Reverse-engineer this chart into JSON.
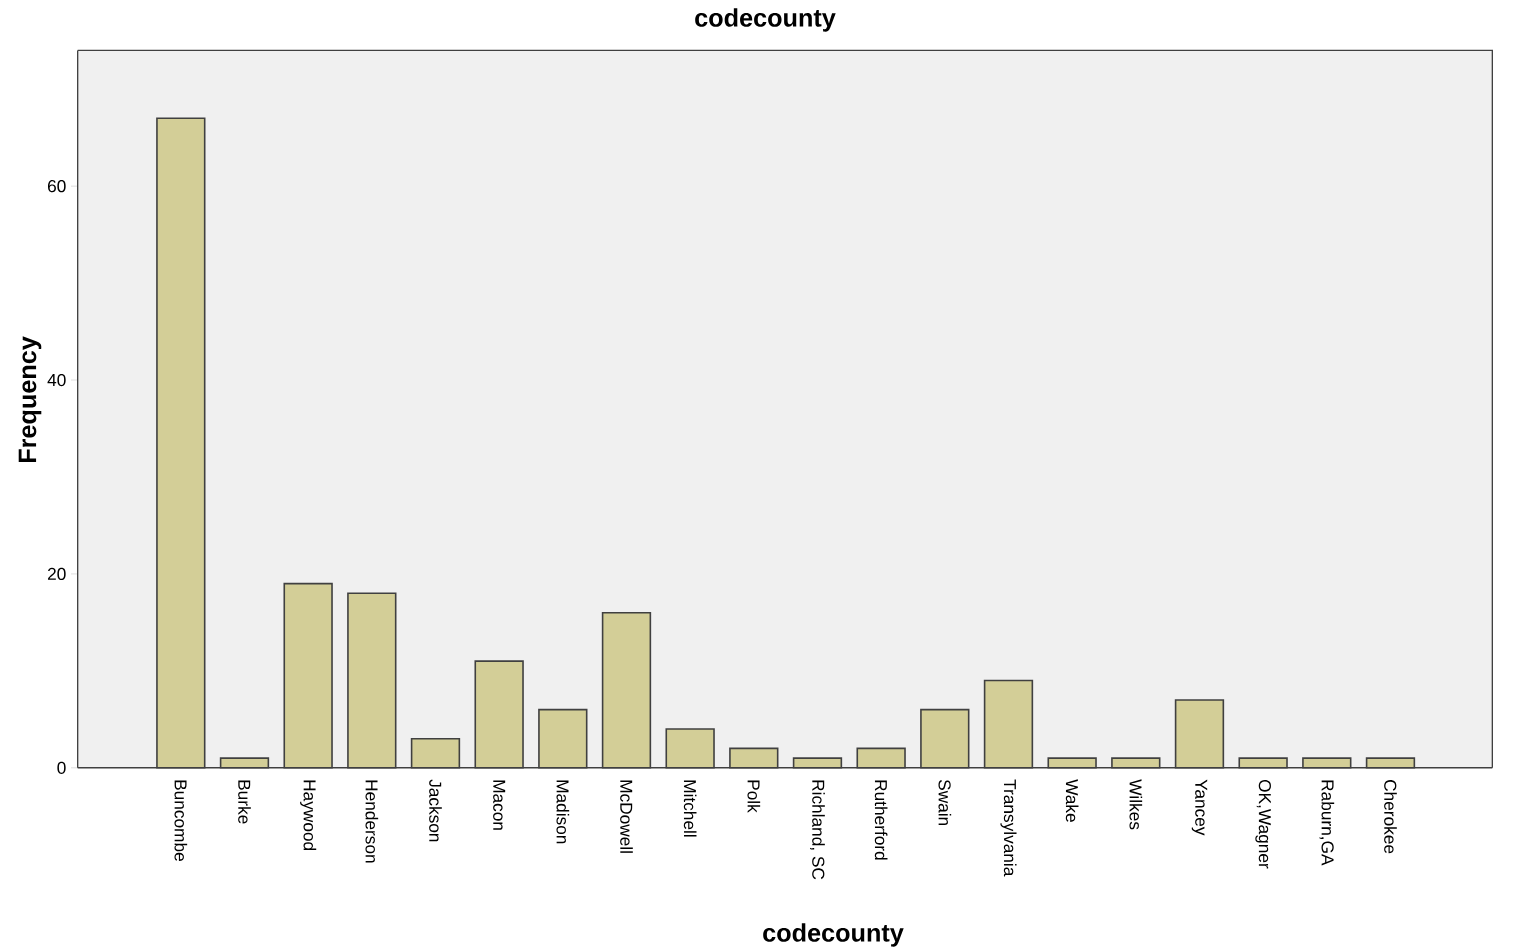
{
  "chart_data": {
    "type": "bar",
    "title": "codecounty",
    "xlabel": "codecounty",
    "ylabel": "Frequency",
    "categories": [
      "Buncombe",
      "Burke",
      "Haywood",
      "Henderson",
      "Jackson",
      "Macon",
      "Madison",
      "McDowell",
      "Mitchell",
      "Polk",
      "Richland, SC",
      "Rutherford",
      "Swain",
      "Transylvania",
      "Wake",
      "Wilkes",
      "Yancey",
      "OK,Wagner",
      "Raburn,GA",
      "Cherokee"
    ],
    "values": [
      67,
      1,
      19,
      18,
      3,
      11,
      6,
      16,
      4,
      2,
      1,
      2,
      6,
      9,
      1,
      1,
      7,
      1,
      1,
      1
    ],
    "color": "#d3ce97",
    "ylim": [
      0,
      74
    ],
    "yticks": [
      0,
      20,
      40,
      60
    ]
  }
}
